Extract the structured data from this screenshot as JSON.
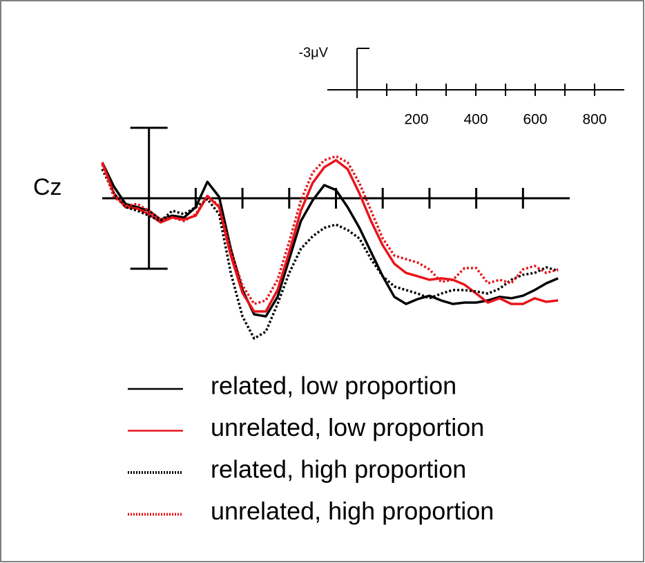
{
  "chart_data": {
    "type": "line",
    "channel_label": "Cz",
    "x": [
      -100,
      -75,
      -50,
      -25,
      0,
      25,
      50,
      75,
      100,
      125,
      150,
      175,
      200,
      225,
      250,
      275,
      300,
      325,
      350,
      375,
      400,
      425,
      450,
      475,
      500,
      525,
      550,
      575,
      600,
      625,
      650,
      675,
      700,
      725,
      750,
      775,
      800,
      825,
      850,
      875
    ],
    "xlim": [
      -100,
      900
    ],
    "xticks": [
      100,
      200,
      300,
      400,
      500,
      600,
      700,
      800
    ],
    "ylim": [
      -4,
      7
    ],
    "y_inverted": true,
    "calibration_bar": [
      -3,
      3
    ],
    "series": [
      {
        "name": "related, low proportion",
        "color": "#000000",
        "dashed": false,
        "values": [
          -1.53,
          -0.5,
          0.24,
          0.38,
          0.53,
          0.91,
          0.74,
          0.82,
          0.38,
          -0.7,
          -0.06,
          2.15,
          3.91,
          4.94,
          5.03,
          4.2,
          2.59,
          0.97,
          0.09,
          -0.56,
          -0.35,
          0.38,
          1.26,
          2.29,
          3.32,
          4.2,
          4.5,
          4.29,
          4.15,
          4.35,
          4.5,
          4.44,
          4.44,
          4.35,
          4.2,
          4.26,
          4.15,
          3.91,
          3.62,
          3.41
        ]
      },
      {
        "name": "unrelated, low proportion",
        "color": "#e8141b",
        "dashed": false,
        "values": [
          -1.53,
          -0.21,
          0.38,
          0.44,
          0.68,
          1.03,
          0.82,
          0.91,
          0.74,
          -0.1,
          0.38,
          2.44,
          4.03,
          4.82,
          4.82,
          3.91,
          2.29,
          0.53,
          -0.65,
          -1.32,
          -1.62,
          -1.24,
          -0.21,
          0.97,
          2.0,
          2.79,
          3.18,
          3.32,
          3.47,
          3.41,
          3.47,
          3.68,
          4.06,
          4.44,
          4.26,
          4.5,
          4.5,
          4.26,
          4.41,
          4.35
        ]
      },
      {
        "name": "related, high proportion",
        "color": "#000000",
        "dashed": true,
        "values": [
          -1.24,
          -0.21,
          0.38,
          0.53,
          0.74,
          0.97,
          0.53,
          0.68,
          0.38,
          0.03,
          0.68,
          3.18,
          5.03,
          5.97,
          5.68,
          4.5,
          3.18,
          2.15,
          1.62,
          1.26,
          1.12,
          1.35,
          1.71,
          2.59,
          3.32,
          3.76,
          3.91,
          4.06,
          4.26,
          4.06,
          3.91,
          3.91,
          3.97,
          4.06,
          3.85,
          3.47,
          3.26,
          3.18,
          2.94,
          3.09
        ]
      },
      {
        "name": "unrelated, high proportion",
        "color": "#e8141b",
        "dashed": true,
        "values": [
          -1.44,
          -0.06,
          0.32,
          0.24,
          0.53,
          0.91,
          0.82,
          0.97,
          0.68,
          -0.1,
          0.32,
          2.24,
          3.71,
          4.5,
          4.35,
          3.47,
          1.85,
          0.09,
          -1.09,
          -1.62,
          -1.79,
          -1.53,
          -0.65,
          0.53,
          1.71,
          2.44,
          2.59,
          2.74,
          3.03,
          3.56,
          3.47,
          2.97,
          2.97,
          3.62,
          3.47,
          3.62,
          3.03,
          2.88,
          3.18,
          3.03
        ]
      }
    ],
    "scale_bar": {
      "label": "-3μV",
      "ylim": [
        -3,
        0
      ],
      "xlim": [
        -100,
        900
      ],
      "xticks": [
        100,
        200,
        300,
        400,
        500,
        600,
        700,
        800
      ],
      "labeled_ticks": [
        200,
        400,
        600,
        800
      ]
    }
  }
}
